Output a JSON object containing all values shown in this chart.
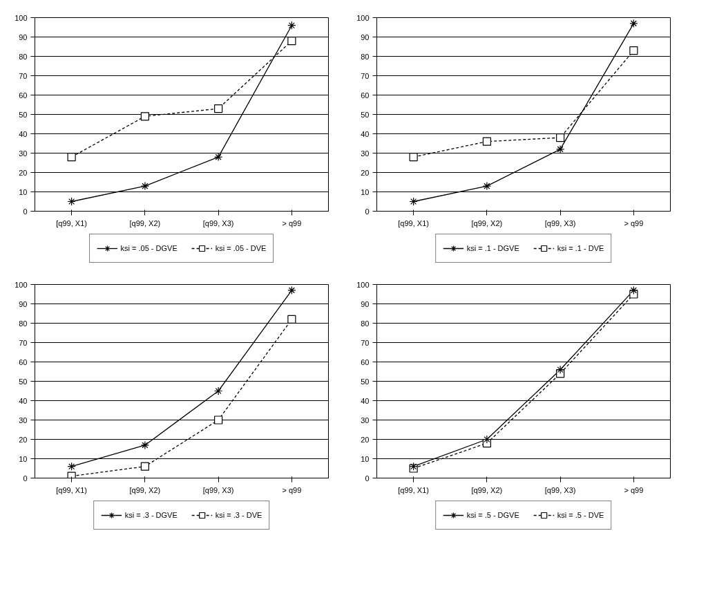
{
  "chart_data": [
    {
      "type": "line",
      "categories": [
        "[q99, X1)",
        "[q99, X2)",
        "[q99, X3)",
        "> q99"
      ],
      "ylim": [
        0,
        100
      ],
      "yticks": [
        0,
        10,
        20,
        30,
        40,
        50,
        60,
        70,
        80,
        90,
        100
      ],
      "grid": "y",
      "legend": "bottom",
      "series": [
        {
          "name": "ksi = .05 - DGVE",
          "color": "#000000",
          "marker": "cross",
          "line_style": "solid",
          "values": [
            5,
            13,
            28,
            96
          ]
        },
        {
          "name": "ksi = .05 - DVE",
          "color": "#000000",
          "marker": "square",
          "line_style": "dashed",
          "values": [
            28,
            49,
            53,
            88
          ]
        }
      ]
    },
    {
      "type": "line",
      "categories": [
        "[q99, X1)",
        "[q99, X2)",
        "[q99, X3)",
        "> q99"
      ],
      "ylim": [
        0,
        100
      ],
      "yticks": [
        0,
        10,
        20,
        30,
        40,
        50,
        60,
        70,
        80,
        90,
        100
      ],
      "grid": "y",
      "legend": "bottom",
      "series": [
        {
          "name": "ksi = .1 - DGVE",
          "color": "#000000",
          "marker": "cross",
          "line_style": "solid",
          "values": [
            5,
            13,
            32,
            97
          ]
        },
        {
          "name": "ksi = .1 - DVE",
          "color": "#000000",
          "marker": "square",
          "line_style": "dashed",
          "values": [
            28,
            36,
            38,
            83
          ]
        }
      ]
    },
    {
      "type": "line",
      "categories": [
        "[q99, X1)",
        "[q99, X2)",
        "[q99, X3)",
        "> q99"
      ],
      "ylim": [
        0,
        100
      ],
      "yticks": [
        0,
        10,
        20,
        30,
        40,
        50,
        60,
        70,
        80,
        90,
        100
      ],
      "grid": "y",
      "legend": "bottom",
      "series": [
        {
          "name": "ksi = .3 - DGVE",
          "color": "#000000",
          "marker": "cross",
          "line_style": "solid",
          "values": [
            6,
            17,
            45,
            97
          ]
        },
        {
          "name": "ksi = .3 - DVE",
          "color": "#000000",
          "marker": "square",
          "line_style": "dashed",
          "values": [
            1,
            6,
            30,
            82
          ]
        }
      ]
    },
    {
      "type": "line",
      "categories": [
        "[q99, X1)",
        "[q99, X2)",
        "[q99, X3)",
        "> q99"
      ],
      "ylim": [
        0,
        100
      ],
      "yticks": [
        0,
        10,
        20,
        30,
        40,
        50,
        60,
        70,
        80,
        90,
        100
      ],
      "grid": "y",
      "legend": "bottom",
      "series": [
        {
          "name": "ksi = .5 - DGVE",
          "color": "#000000",
          "marker": "cross",
          "line_style": "solid",
          "values": [
            6,
            20,
            56,
            97
          ]
        },
        {
          "name": "ksi = .5 - DVE",
          "color": "#000000",
          "marker": "square",
          "line_style": "dashed",
          "values": [
            5,
            18,
            54,
            95
          ]
        }
      ]
    }
  ]
}
